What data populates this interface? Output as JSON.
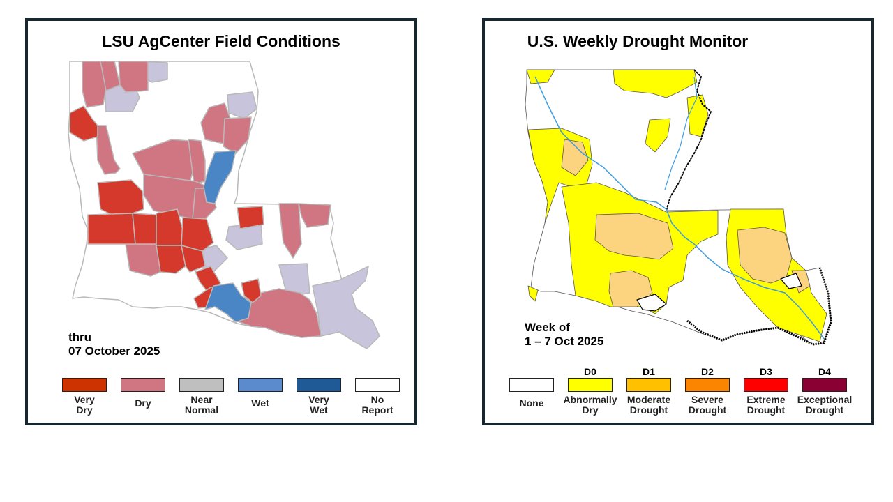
{
  "left_panel": {
    "title": "LSU AgCenter Field Conditions",
    "date_line1": "thru",
    "date_line2": "07 October 2025",
    "colors": {
      "very_dry": "#d4392b",
      "dry": "#d07682",
      "near_normal": "#c8c4dc",
      "wet": "#4a86c6",
      "very_wet": "#1f5a96",
      "no_report": "#ffffff",
      "border": "#b9b9b9"
    },
    "legend": [
      {
        "line1": "Very",
        "line2": "Dry",
        "color": "#cc3300"
      },
      {
        "line1": "Dry",
        "line2": "",
        "color": "#d07682"
      },
      {
        "line1": "Near",
        "line2": "Normal",
        "color": "#bfbfbf"
      },
      {
        "line1": "Wet",
        "line2": "",
        "color": "#5b8bcc"
      },
      {
        "line1": "Very",
        "line2": "Wet",
        "color": "#1f5a96"
      },
      {
        "line1": "No",
        "line2": "Report",
        "color": "#ffffff"
      }
    ]
  },
  "right_panel": {
    "title": "U.S. Weekly Drought Monitor",
    "date_line1": "Week of",
    "date_line2": "1 – 7 Oct 2025",
    "colors": {
      "none": "#ffffff",
      "d0": "#ffff00",
      "d1": "#fcd37f",
      "river": "#3d9ce0",
      "border": "#555555"
    },
    "legend": [
      {
        "code": "",
        "line1": "None",
        "line2": "",
        "color": "#ffffff"
      },
      {
        "code": "D0",
        "line1": "Abnormally",
        "line2": "Dry",
        "color": "#ffff00"
      },
      {
        "code": "D1",
        "line1": "Moderate",
        "line2": "Drought",
        "color": "#ffc000"
      },
      {
        "code": "D2",
        "line1": "Severe",
        "line2": "Drought",
        "color": "#fb8500"
      },
      {
        "code": "D3",
        "line1": "Extreme",
        "line2": "Drought",
        "color": "#ff0000"
      },
      {
        "code": "D4",
        "line1": "Exceptional",
        "line2": "Drought",
        "color": "#8b0033"
      }
    ]
  }
}
